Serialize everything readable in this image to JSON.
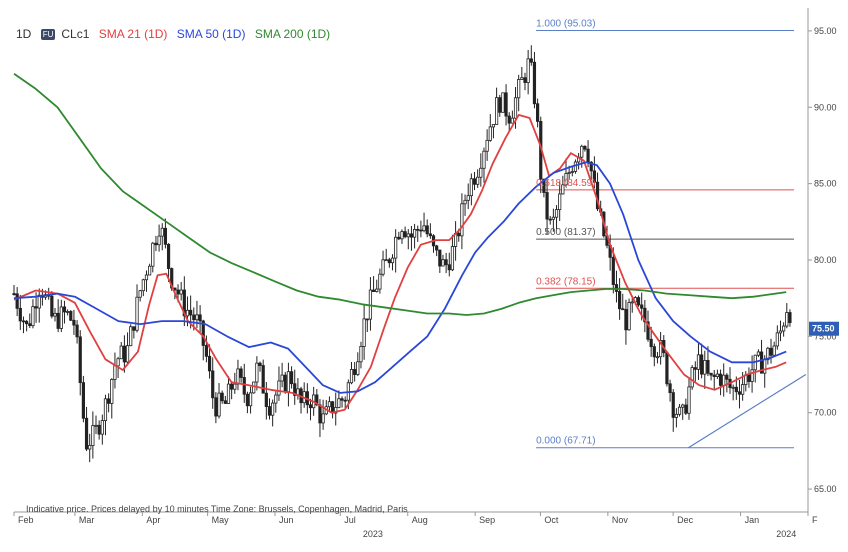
{
  "legend": {
    "timeframe": "1D",
    "symbol_badge": "FU",
    "symbol": "CLc1",
    "sma21": "SMA 21 (1D)",
    "sma50": "SMA 50 (1D)",
    "sma200": "SMA 200 (1D)"
  },
  "footer_note": "Indicative price. Prices delayed by 10 minutes    Time Zone: Brussels, Copenhagen, Madrid, Paris",
  "last_price_label": "75.50",
  "colors": {
    "sma21": "#e04040",
    "sma50": "#2a47d8",
    "sma200": "#2f8a2f",
    "candle": "#222222",
    "fib_line": "#5b7fc7",
    "price_tag": "#2f5fb4"
  },
  "chart_data": {
    "type": "candlestick",
    "y_axis": {
      "position": "right",
      "ylim": [
        63.5,
        96.5
      ],
      "ticks": [
        95,
        90,
        85,
        80,
        75,
        70,
        65
      ],
      "tick_labels": [
        "95.00",
        "90.00",
        "85.00",
        "80.00",
        "75.00",
        "70.00",
        "65.00"
      ]
    },
    "x_axis": {
      "range_days": [
        0,
        364
      ],
      "month_ticks": [
        {
          "label": "Feb",
          "day": 0
        },
        {
          "label": "Mar",
          "day": 28
        },
        {
          "label": "Apr",
          "day": 59
        },
        {
          "label": "May",
          "day": 89
        },
        {
          "label": "Jun",
          "day": 120
        },
        {
          "label": "Jul",
          "day": 150
        },
        {
          "label": "Aug",
          "day": 181
        },
        {
          "label": "Sep",
          "day": 212
        },
        {
          "label": "Oct",
          "day": 242
        },
        {
          "label": "Nov",
          "day": 273
        },
        {
          "label": "Dec",
          "day": 303
        },
        {
          "label": "Jan",
          "day": 334
        },
        {
          "label": "F",
          "day": 365
        }
      ],
      "year_labels": [
        {
          "label": "2023",
          "day": 165
        },
        {
          "label": "2024",
          "day": 355
        }
      ]
    },
    "price_path": [
      [
        0,
        77.8
      ],
      [
        6,
        75.5
      ],
      [
        12,
        78.5
      ],
      [
        18,
        76.0
      ],
      [
        24,
        76.5
      ],
      [
        28,
        75.8
      ],
      [
        33,
        68.0
      ],
      [
        37,
        68.5
      ],
      [
        42,
        70.5
      ],
      [
        47,
        73.5
      ],
      [
        52,
        74.0
      ],
      [
        58,
        78.0
      ],
      [
        63,
        80.5
      ],
      [
        67,
        82.5
      ],
      [
        72,
        79.0
      ],
      [
        78,
        77.0
      ],
      [
        84,
        76.0
      ],
      [
        88,
        74.0
      ],
      [
        92,
        70.5
      ],
      [
        97,
        70.5
      ],
      [
        102,
        72.5
      ],
      [
        107,
        71.0
      ],
      [
        112,
        73.0
      ],
      [
        117,
        70.5
      ],
      [
        122,
        71.5
      ],
      [
        127,
        72.5
      ],
      [
        132,
        70.5
      ],
      [
        137,
        71.0
      ],
      [
        142,
        69.5
      ],
      [
        147,
        70.5
      ],
      [
        152,
        71.0
      ],
      [
        157,
        73.5
      ],
      [
        162,
        76.5
      ],
      [
        167,
        78.5
      ],
      [
        172,
        80.0
      ],
      [
        178,
        82.5
      ],
      [
        183,
        81.5
      ],
      [
        188,
        82.5
      ],
      [
        193,
        80.5
      ],
      [
        198,
        79.5
      ],
      [
        203,
        81.0
      ],
      [
        208,
        84.5
      ],
      [
        213,
        86.0
      ],
      [
        218,
        88.5
      ],
      [
        223,
        90.5
      ],
      [
        228,
        89.5
      ],
      [
        233,
        91.5
      ],
      [
        237,
        93.0
      ],
      [
        240,
        90.0
      ],
      [
        243,
        84.0
      ],
      [
        247,
        82.0
      ],
      [
        252,
        84.5
      ],
      [
        257,
        86.5
      ],
      [
        262,
        88.0
      ],
      [
        264,
        87.0
      ],
      [
        268,
        83.5
      ],
      [
        273,
        80.5
      ],
      [
        277,
        77.5
      ],
      [
        281,
        76.0
      ],
      [
        285,
        77.0
      ],
      [
        290,
        76.0
      ],
      [
        294,
        74.5
      ],
      [
        298,
        74.0
      ],
      [
        303,
        70.5
      ],
      [
        307,
        69.5
      ],
      [
        311,
        72.0
      ],
      [
        315,
        73.5
      ],
      [
        320,
        72.0
      ],
      [
        324,
        72.5
      ],
      [
        330,
        71.5
      ],
      [
        335,
        72.0
      ],
      [
        340,
        73.0
      ],
      [
        345,
        73.5
      ],
      [
        350,
        74.5
      ],
      [
        353,
        75.5
      ],
      [
        355,
        77.0
      ],
      [
        357,
        76.6
      ]
    ],
    "series": [
      {
        "name": "SMA 21 (1D)",
        "points": [
          [
            0,
            77.4
          ],
          [
            10,
            78.0
          ],
          [
            20,
            77.8
          ],
          [
            28,
            77.2
          ],
          [
            35,
            75.3
          ],
          [
            42,
            73.5
          ],
          [
            50,
            72.8
          ],
          [
            57,
            74.0
          ],
          [
            62,
            77.0
          ],
          [
            66,
            79.0
          ],
          [
            70,
            79.1
          ],
          [
            75,
            77.5
          ],
          [
            80,
            76.0
          ],
          [
            87,
            75.0
          ],
          [
            93,
            73.5
          ],
          [
            100,
            72.0
          ],
          [
            108,
            71.8
          ],
          [
            118,
            71.5
          ],
          [
            128,
            71.3
          ],
          [
            138,
            70.7
          ],
          [
            146,
            70.0
          ],
          [
            152,
            70.2
          ],
          [
            158,
            71.5
          ],
          [
            164,
            73.0
          ],
          [
            170,
            75.5
          ],
          [
            175,
            77.5
          ],
          [
            181,
            79.5
          ],
          [
            187,
            81.0
          ],
          [
            194,
            81.3
          ],
          [
            200,
            81.3
          ],
          [
            205,
            82.0
          ],
          [
            210,
            83.0
          ],
          [
            215,
            84.5
          ],
          [
            220,
            86.3
          ],
          [
            226,
            88.0
          ],
          [
            232,
            89.5
          ],
          [
            237,
            89.3
          ],
          [
            242,
            87.5
          ],
          [
            246,
            85.5
          ],
          [
            251,
            86.0
          ],
          [
            256,
            87.0
          ],
          [
            262,
            86.5
          ],
          [
            268,
            84.0
          ],
          [
            274,
            81.0
          ],
          [
            281,
            78.5
          ],
          [
            288,
            76.5
          ],
          [
            294,
            75.2
          ],
          [
            300,
            74.0
          ],
          [
            308,
            72.5
          ],
          [
            315,
            71.8
          ],
          [
            322,
            71.5
          ],
          [
            330,
            72.0
          ],
          [
            337,
            72.5
          ],
          [
            344,
            72.8
          ],
          [
            350,
            73.0
          ],
          [
            355,
            73.3
          ]
        ]
      },
      {
        "name": "SMA 50 (1D)",
        "points": [
          [
            0,
            77.5
          ],
          [
            10,
            77.6
          ],
          [
            20,
            77.8
          ],
          [
            28,
            77.6
          ],
          [
            38,
            76.8
          ],
          [
            48,
            76.0
          ],
          [
            58,
            75.8
          ],
          [
            68,
            76.0
          ],
          [
            78,
            76.0
          ],
          [
            88,
            75.8
          ],
          [
            98,
            75.0
          ],
          [
            108,
            74.3
          ],
          [
            118,
            74.6
          ],
          [
            126,
            74.2
          ],
          [
            134,
            73.0
          ],
          [
            142,
            71.8
          ],
          [
            150,
            71.3
          ],
          [
            158,
            71.4
          ],
          [
            166,
            72.0
          ],
          [
            174,
            73.0
          ],
          [
            182,
            74.0
          ],
          [
            190,
            75.0
          ],
          [
            198,
            76.8
          ],
          [
            206,
            79.0
          ],
          [
            212,
            80.5
          ],
          [
            218,
            81.5
          ],
          [
            225,
            82.5
          ],
          [
            232,
            83.7
          ],
          [
            240,
            84.8
          ],
          [
            248,
            85.7
          ],
          [
            256,
            86.1
          ],
          [
            263,
            86.4
          ],
          [
            268,
            86.2
          ],
          [
            274,
            85.0
          ],
          [
            280,
            83.0
          ],
          [
            287,
            80.0
          ],
          [
            295,
            77.5
          ],
          [
            303,
            76.0
          ],
          [
            311,
            75.0
          ],
          [
            320,
            74.0
          ],
          [
            330,
            73.3
          ],
          [
            340,
            73.3
          ],
          [
            348,
            73.6
          ],
          [
            355,
            74.0
          ]
        ]
      },
      {
        "name": "SMA 200 (1D)",
        "points": [
          [
            0,
            92.2
          ],
          [
            10,
            91.2
          ],
          [
            20,
            90.0
          ],
          [
            30,
            88.0
          ],
          [
            40,
            86.0
          ],
          [
            50,
            84.5
          ],
          [
            60,
            83.5
          ],
          [
            70,
            82.5
          ],
          [
            80,
            81.5
          ],
          [
            90,
            80.5
          ],
          [
            100,
            79.8
          ],
          [
            110,
            79.2
          ],
          [
            120,
            78.6
          ],
          [
            130,
            78.0
          ],
          [
            140,
            77.6
          ],
          [
            150,
            77.4
          ],
          [
            160,
            77.1
          ],
          [
            170,
            76.9
          ],
          [
            180,
            76.7
          ],
          [
            190,
            76.5
          ],
          [
            200,
            76.5
          ],
          [
            208,
            76.4
          ],
          [
            216,
            76.5
          ],
          [
            224,
            76.8
          ],
          [
            232,
            77.2
          ],
          [
            240,
            77.5
          ],
          [
            248,
            77.7
          ],
          [
            256,
            77.9
          ],
          [
            264,
            78.0
          ],
          [
            272,
            78.1
          ],
          [
            280,
            78.1
          ],
          [
            290,
            78.0
          ],
          [
            300,
            77.8
          ],
          [
            310,
            77.7
          ],
          [
            320,
            77.6
          ],
          [
            330,
            77.5
          ],
          [
            340,
            77.6
          ],
          [
            350,
            77.8
          ],
          [
            355,
            77.9
          ]
        ]
      }
    ],
    "fibonacci": {
      "from_day": 240,
      "to_day": 364,
      "levels": [
        {
          "label": "1.000 (95.03)",
          "value": 95.03,
          "color": "#5b7fc7"
        },
        {
          "label": "0.618 (84.59)",
          "value": 84.59,
          "color": "#e05050"
        },
        {
          "label": "0.500 (81.37)",
          "value": 81.37,
          "color": "#555555"
        },
        {
          "label": "0.382 (78.15)",
          "value": 78.15,
          "color": "#e05050"
        },
        {
          "label": "0.000 (67.71)",
          "value": 67.71,
          "color": "#5b7fc7"
        }
      ]
    },
    "trendline": {
      "from": [
        310,
        67.71
      ],
      "to": [
        364,
        72.5
      ]
    },
    "last_price": 75.5
  }
}
